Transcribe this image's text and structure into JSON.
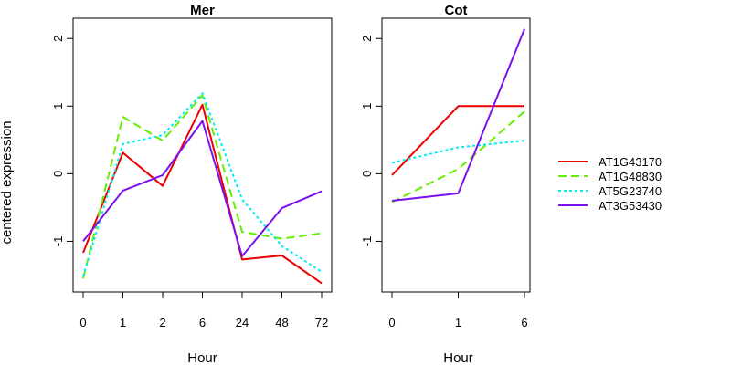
{
  "figure": {
    "ylabel": "centered expression",
    "legend_position": "right"
  },
  "legend": [
    {
      "name": "AT1G43170",
      "color": "#ee0000",
      "dash": "solid"
    },
    {
      "name": "AT1G48830",
      "color": "#66ee00",
      "dash": "dashed"
    },
    {
      "name": "AT5G23740",
      "color": "#00eeee",
      "dash": "dotted"
    },
    {
      "name": "AT3G53430",
      "color": "#7a11ee",
      "dash": "solid"
    }
  ],
  "chart_data": [
    {
      "type": "line",
      "title": "Mer",
      "xlabel": "Hour",
      "ylabel": "centered expression",
      "categories": [
        "0",
        "1",
        "2",
        "6",
        "24",
        "48",
        "72"
      ],
      "ylim": [
        -1.75,
        2.3
      ],
      "yticks": [
        -1,
        0,
        1,
        2
      ],
      "grid": false,
      "series": [
        {
          "name": "AT1G43170",
          "values": [
            -1.17,
            0.31,
            -0.18,
            1.02,
            -1.27,
            -1.21,
            -1.62
          ]
        },
        {
          "name": "AT1G48830",
          "values": [
            -1.55,
            0.84,
            0.49,
            1.16,
            -0.86,
            -0.96,
            -0.88
          ]
        },
        {
          "name": "AT5G23740",
          "values": [
            -1.52,
            0.44,
            0.57,
            1.19,
            -0.38,
            -1.07,
            -1.45
          ]
        },
        {
          "name": "AT3G53430",
          "values": [
            -1.0,
            -0.25,
            -0.02,
            0.78,
            -1.22,
            -0.51,
            -0.26
          ]
        }
      ]
    },
    {
      "type": "line",
      "title": "Cot",
      "xlabel": "Hour",
      "ylabel": "",
      "categories": [
        "0",
        "1",
        "6"
      ],
      "ylim": [
        -1.75,
        2.3
      ],
      "yticks": [
        -1,
        0,
        1,
        2
      ],
      "grid": false,
      "series": [
        {
          "name": "AT1G43170",
          "values": [
            -0.02,
            1.0,
            1.0
          ]
        },
        {
          "name": "AT1G48830",
          "values": [
            -0.42,
            0.07,
            0.92
          ]
        },
        {
          "name": "AT5G23740",
          "values": [
            0.16,
            0.39,
            0.49
          ]
        },
        {
          "name": "AT3G53430",
          "values": [
            -0.4,
            -0.29,
            2.14
          ]
        }
      ]
    }
  ]
}
